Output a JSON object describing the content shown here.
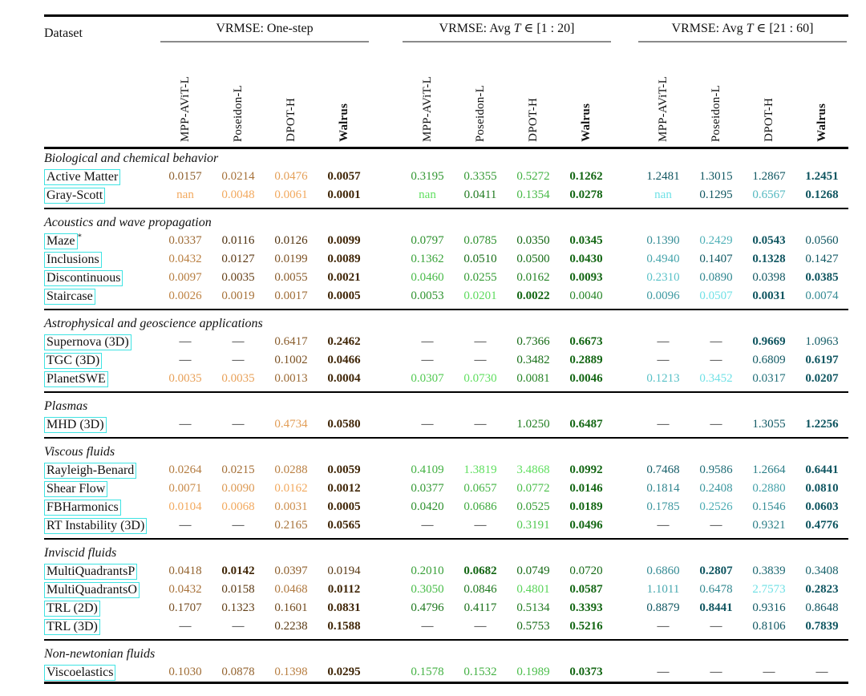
{
  "table": {
    "dataset_header": "Dataset",
    "missing_value": "—",
    "nan_text": "nan",
    "link_box_color": "#3fe3e3",
    "groups": [
      {
        "title": "VRMSE: One-step",
        "columns": [
          "MPP-AViT-L",
          "Poseidon-L",
          "DPOT-H",
          "Walrus"
        ],
        "colormap": {
          "dark": "#3f2506",
          "light": "#f2a95e"
        }
      },
      {
        "title": "VRMSE: Avg T ∈ [1 : 20]",
        "columns": [
          "MPP-AViT-L",
          "Poseidon-L",
          "DPOT-H",
          "Walrus"
        ],
        "colormap": {
          "dark": "#136613",
          "light": "#5fdf5f"
        }
      },
      {
        "title": "VRMSE: Avg T ∈ [21 : 60]",
        "columns": [
          "MPP-AViT-L",
          "Poseidon-L",
          "DPOT-H",
          "Walrus"
        ],
        "colormap": {
          "dark": "#0f5560",
          "light": "#70e1e6"
        }
      }
    ],
    "sections": [
      {
        "title": "Biological and chemical behavior",
        "rows": [
          {
            "label": "Active Matter",
            "sup": "",
            "values": [
              [
                "0.0157",
                "0.0214",
                "0.0476",
                "0.0057"
              ],
              [
                "0.3195",
                "0.3355",
                "0.5272",
                "0.1262"
              ],
              [
                "1.2481",
                "1.3015",
                "1.2867",
                "1.2451"
              ]
            ]
          },
          {
            "label": "Gray-Scott",
            "sup": "",
            "values": [
              [
                "nan",
                "0.0048",
                "0.0061",
                "0.0001"
              ],
              [
                "nan",
                "0.0411",
                "0.1354",
                "0.0278"
              ],
              [
                "nan",
                "0.1295",
                "0.6567",
                "0.1268"
              ]
            ]
          }
        ]
      },
      {
        "title": "Acoustics and wave propagation",
        "rows": [
          {
            "label": "Maze",
            "sup": "*",
            "values": [
              [
                "0.0337",
                "0.0116",
                "0.0126",
                "0.0099"
              ],
              [
                "0.0797",
                "0.0785",
                "0.0350",
                "0.0345"
              ],
              [
                "0.1390",
                "0.2429",
                "0.0543",
                "0.0560"
              ]
            ]
          },
          {
            "label": "Inclusions",
            "sup": "",
            "values": [
              [
                "0.0432",
                "0.0127",
                "0.0199",
                "0.0089"
              ],
              [
                "0.1362",
                "0.0510",
                "0.0500",
                "0.0430"
              ],
              [
                "0.4940",
                "0.1407",
                "0.1328",
                "0.1427"
              ]
            ]
          },
          {
            "label": "Discontinuous",
            "sup": "",
            "values": [
              [
                "0.0097",
                "0.0035",
                "0.0055",
                "0.0021"
              ],
              [
                "0.0460",
                "0.0255",
                "0.0162",
                "0.0093"
              ],
              [
                "0.2310",
                "0.0890",
                "0.0398",
                "0.0385"
              ]
            ]
          },
          {
            "label": "Staircase",
            "sup": "",
            "values": [
              [
                "0.0026",
                "0.0019",
                "0.0017",
                "0.0005"
              ],
              [
                "0.0053",
                "0.0201",
                "0.0022",
                "0.0040"
              ],
              [
                "0.0096",
                "0.0507",
                "0.0031",
                "0.0074"
              ]
            ]
          }
        ]
      },
      {
        "title": "Astrophysical and geoscience applications",
        "rows": [
          {
            "label": "Supernova (3D)",
            "sup": "",
            "values": [
              [
                "—",
                "—",
                "0.6417",
                "0.2462"
              ],
              [
                "—",
                "—",
                "0.7366",
                "0.6673"
              ],
              [
                "—",
                "—",
                "0.9669",
                "1.0963"
              ]
            ]
          },
          {
            "label": "TGC (3D)",
            "sup": "",
            "values": [
              [
                "—",
                "—",
                "0.1002",
                "0.0466"
              ],
              [
                "—",
                "—",
                "0.3482",
                "0.2889"
              ],
              [
                "—",
                "—",
                "0.6809",
                "0.6197"
              ]
            ]
          },
          {
            "label": "PlanetSWE",
            "sup": "",
            "values": [
              [
                "0.0035",
                "0.0035",
                "0.0013",
                "0.0004"
              ],
              [
                "0.0307",
                "0.0730",
                "0.0081",
                "0.0046"
              ],
              [
                "0.1213",
                "0.3452",
                "0.0317",
                "0.0207"
              ]
            ]
          }
        ]
      },
      {
        "title": "Plasmas",
        "rows": [
          {
            "label": "MHD (3D)",
            "sup": "",
            "values": [
              [
                "—",
                "—",
                "0.4734",
                "0.0580"
              ],
              [
                "—",
                "—",
                "1.0250",
                "0.6487"
              ],
              [
                "—",
                "—",
                "1.3055",
                "1.2256"
              ]
            ]
          }
        ]
      },
      {
        "title": "Viscous fluids",
        "rows": [
          {
            "label": "Rayleigh-Benard",
            "sup": "",
            "values": [
              [
                "0.0264",
                "0.0215",
                "0.0288",
                "0.0059"
              ],
              [
                "0.4109",
                "1.3819",
                "3.4868",
                "0.0992"
              ],
              [
                "0.7468",
                "0.9586",
                "1.2664",
                "0.6441"
              ]
            ]
          },
          {
            "label": "Shear Flow",
            "sup": "",
            "values": [
              [
                "0.0071",
                "0.0090",
                "0.0162",
                "0.0012"
              ],
              [
                "0.0377",
                "0.0657",
                "0.0772",
                "0.0146"
              ],
              [
                "0.1814",
                "0.2408",
                "0.2880",
                "0.0810"
              ]
            ]
          },
          {
            "label": "FBHarmonics",
            "sup": "",
            "values": [
              [
                "0.0104",
                "0.0068",
                "0.0031",
                "0.0005"
              ],
              [
                "0.0420",
                "0.0686",
                "0.0525",
                "0.0189"
              ],
              [
                "0.1785",
                "0.2526",
                "0.1546",
                "0.0603"
              ]
            ]
          },
          {
            "label": "RT Instability (3D)",
            "sup": "",
            "values": [
              [
                "—",
                "—",
                "0.2165",
                "0.0565"
              ],
              [
                "—",
                "—",
                "0.3191",
                "0.0496"
              ],
              [
                "—",
                "—",
                "0.9321",
                "0.4776"
              ]
            ]
          }
        ]
      },
      {
        "title": "Inviscid fluids",
        "rows": [
          {
            "label": "MultiQuadrantsP",
            "sup": "",
            "values": [
              [
                "0.0418",
                "0.0142",
                "0.0397",
                "0.0194"
              ],
              [
                "0.2010",
                "0.0682",
                "0.0749",
                "0.0720"
              ],
              [
                "0.6860",
                "0.2807",
                "0.3839",
                "0.3408"
              ]
            ]
          },
          {
            "label": "MultiQuadrantsO",
            "sup": "",
            "values": [
              [
                "0.0432",
                "0.0158",
                "0.0468",
                "0.0112"
              ],
              [
                "0.3050",
                "0.0846",
                "0.4801",
                "0.0587"
              ],
              [
                "1.1011",
                "0.6478",
                "2.7573",
                "0.2823"
              ]
            ]
          },
          {
            "label": "TRL (2D)",
            "sup": "",
            "values": [
              [
                "0.1707",
                "0.1323",
                "0.1601",
                "0.0831"
              ],
              [
                "0.4796",
                "0.4117",
                "0.5134",
                "0.3393"
              ],
              [
                "0.8879",
                "0.8441",
                "0.9316",
                "0.8648"
              ]
            ]
          },
          {
            "label": "TRL (3D)",
            "sup": "",
            "values": [
              [
                "—",
                "—",
                "0.2238",
                "0.1588"
              ],
              [
                "—",
                "—",
                "0.5753",
                "0.5216"
              ],
              [
                "—",
                "—",
                "0.8106",
                "0.7839"
              ]
            ]
          }
        ]
      },
      {
        "title": "Non-newtonian fluids",
        "rows": [
          {
            "label": "Viscoelastics",
            "sup": "",
            "values": [
              [
                "0.1030",
                "0.0878",
                "0.1398",
                "0.0295"
              ],
              [
                "0.1578",
                "0.1532",
                "0.1989",
                "0.0373"
              ],
              [
                "—",
                "—",
                "—",
                "—"
              ]
            ]
          }
        ]
      }
    ]
  }
}
